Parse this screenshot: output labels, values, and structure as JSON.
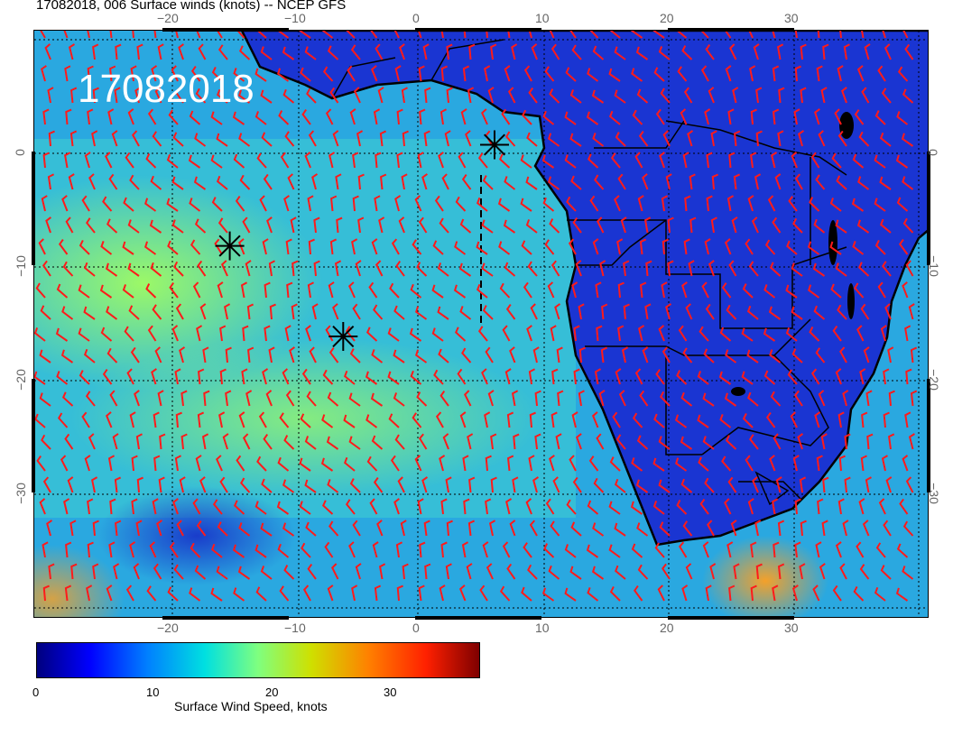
{
  "header": {
    "title": "17082018, 006 Surface winds (knots) -- NCEP GFS"
  },
  "map": {
    "date_stamp": "17082018",
    "lon_ticks_top": [
      "−20",
      "−10",
      "0",
      "10",
      "20",
      "30"
    ],
    "lon_ticks_bottom": [
      "−20",
      "−10",
      "0",
      "10",
      "20",
      "30"
    ],
    "lat_ticks_left": [
      "0",
      "−10",
      "−20",
      "−30"
    ],
    "lat_ticks_right": [
      "0",
      "−10",
      "−20",
      "−30"
    ],
    "extent": {
      "lon_min": -30,
      "lon_max": 41,
      "lat_max": 10,
      "lat_min": -40
    },
    "markers": [
      {
        "name": "star-marker",
        "lon": 6.5,
        "lat": 0.3
      },
      {
        "name": "star-marker",
        "lon": -14.5,
        "lat": -8.3
      },
      {
        "name": "star-marker",
        "lon": -5.5,
        "lat": -16.0
      }
    ],
    "colors": {
      "land_low": "#1a2fd0",
      "ocean_mid": "#20b8d8",
      "barb": "#ff1a1a"
    }
  },
  "colorbar": {
    "label": "Surface Wind Speed, knots",
    "ticks": [
      "0",
      "10",
      "20",
      "30"
    ],
    "range": [
      0,
      38
    ]
  }
}
